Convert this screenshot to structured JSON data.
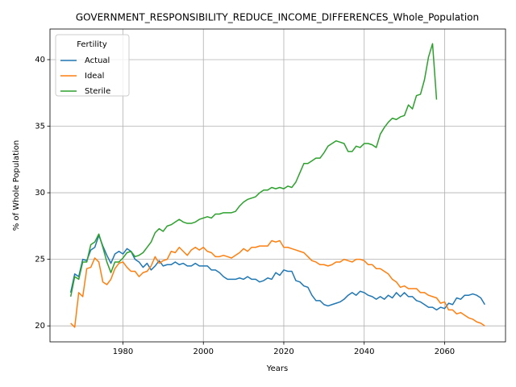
{
  "chart_data": {
    "type": "line",
    "title": "GOVERNMENT_RESPONSIBILITY_REDUCE_INCOME_DIFFERENCES_Whole_Population",
    "xlabel": "Years",
    "ylabel": "% of Whole Population",
    "legend_title": "Fertility",
    "legend": "upper left",
    "grid": true,
    "x": [
      1967,
      1968,
      1969,
      1970,
      1971,
      1972,
      1973,
      1974,
      1975,
      1976,
      1977,
      1978,
      1979,
      1980,
      1981,
      1982,
      1983,
      1984,
      1985,
      1986,
      1987,
      1988,
      1989,
      1990,
      1991,
      1992,
      1993,
      1994,
      1995,
      1996,
      1997,
      1998,
      1999,
      2000,
      2001,
      2002,
      2003,
      2004,
      2005,
      2006,
      2007,
      2008,
      2009,
      2010,
      2011,
      2012,
      2013,
      2014,
      2015,
      2016,
      2017,
      2018,
      2019,
      2020,
      2021,
      2022,
      2023,
      2024,
      2025,
      2026,
      2027,
      2028,
      2029,
      2030,
      2031,
      2032,
      2033,
      2034,
      2035,
      2036,
      2037,
      2038,
      2039,
      2040,
      2041,
      2042,
      2043,
      2044,
      2045,
      2046,
      2047,
      2048,
      2049,
      2050,
      2051,
      2052,
      2053,
      2054,
      2055,
      2056,
      2057,
      2058,
      2059,
      2060,
      2061,
      2062,
      2063,
      2064,
      2065,
      2066,
      2067,
      2068,
      2069,
      2070
    ],
    "series": [
      {
        "name": "Actual",
        "color": "#1f77b4",
        "values": [
          22.5,
          23.9,
          23.7,
          25.0,
          24.9,
          25.7,
          25.9,
          26.8,
          26.0,
          25.3,
          24.7,
          25.4,
          25.6,
          25.4,
          25.8,
          25.6,
          25.0,
          24.8,
          24.4,
          24.7,
          24.2,
          24.5,
          24.9,
          24.5,
          24.6,
          24.6,
          24.8,
          24.6,
          24.7,
          24.5,
          24.5,
          24.7,
          24.5,
          24.5,
          24.5,
          24.2,
          24.2,
          24.0,
          23.7,
          23.5,
          23.5,
          23.5,
          23.6,
          23.5,
          23.7,
          23.5,
          23.5,
          23.3,
          23.4,
          23.6,
          23.5,
          24.0,
          23.8,
          24.2,
          24.1,
          24.1,
          23.4,
          23.3,
          23.0,
          22.9,
          22.3,
          21.9,
          21.9,
          21.6,
          21.5,
          21.6,
          21.7,
          21.8,
          22.0,
          22.3,
          22.5,
          22.3,
          22.6,
          22.5,
          22.3,
          22.2,
          22.0,
          22.2,
          22.0,
          22.3,
          22.1,
          22.5,
          22.2,
          22.5,
          22.2,
          22.2,
          21.9,
          21.8,
          21.6,
          21.4,
          21.4,
          21.2,
          21.4,
          21.3,
          21.7,
          21.6,
          22.1,
          22.0,
          22.3,
          22.3,
          22.4,
          22.3,
          22.1,
          21.6
        ]
      },
      {
        "name": "Ideal",
        "color": "#ff7f0e",
        "values": [
          20.2,
          19.9,
          22.5,
          22.2,
          24.3,
          24.4,
          25.1,
          24.8,
          23.3,
          23.1,
          23.5,
          24.3,
          24.7,
          24.8,
          24.4,
          24.1,
          24.1,
          23.7,
          24.0,
          24.1,
          24.5,
          25.2,
          24.7,
          24.9,
          25.0,
          25.6,
          25.5,
          25.9,
          25.6,
          25.3,
          25.7,
          25.9,
          25.7,
          25.9,
          25.6,
          25.5,
          25.2,
          25.2,
          25.3,
          25.2,
          25.1,
          25.3,
          25.5,
          25.8,
          25.6,
          25.9,
          25.9,
          26.0,
          26.0,
          26.0,
          26.4,
          26.3,
          26.4,
          25.9,
          25.9,
          25.8,
          25.7,
          25.6,
          25.5,
          25.2,
          24.9,
          24.8,
          24.6,
          24.6,
          24.5,
          24.6,
          24.8,
          24.8,
          25.0,
          24.9,
          24.8,
          25.0,
          25.0,
          24.9,
          24.6,
          24.6,
          24.3,
          24.3,
          24.1,
          23.9,
          23.5,
          23.3,
          22.9,
          23.0,
          22.8,
          22.8,
          22.8,
          22.5,
          22.5,
          22.3,
          22.2,
          22.1,
          21.7,
          21.8,
          21.2,
          21.2,
          20.9,
          21.0,
          20.8,
          20.6,
          20.5,
          20.3,
          20.2,
          20.0
        ]
      },
      {
        "name": "Sterile",
        "color": "#2ca02c",
        "values": [
          22.2,
          23.7,
          23.5,
          24.8,
          24.8,
          26.1,
          26.3,
          26.9,
          25.9,
          24.8,
          24.0,
          24.8,
          24.8,
          25.1,
          25.5,
          25.6,
          25.2,
          25.3,
          25.5,
          25.9,
          26.3,
          27.0,
          27.3,
          27.1,
          27.5,
          27.6,
          27.8,
          28.0,
          27.8,
          27.7,
          27.7,
          27.8,
          28.0,
          28.1,
          28.2,
          28.1,
          28.4,
          28.4,
          28.5,
          28.5,
          28.5,
          28.6,
          29.0,
          29.3,
          29.5,
          29.6,
          29.7,
          30.0,
          30.2,
          30.2,
          30.4,
          30.3,
          30.4,
          30.3,
          30.5,
          30.4,
          30.8,
          31.5,
          32.2,
          32.2,
          32.4,
          32.6,
          32.6,
          33.0,
          33.5,
          33.7,
          33.9,
          33.8,
          33.7,
          33.1,
          33.1,
          33.5,
          33.4,
          33.7,
          33.7,
          33.6,
          33.4,
          34.4,
          34.9,
          35.3,
          35.6,
          35.5,
          35.7,
          35.8,
          36.6,
          36.3,
          37.3,
          37.4,
          38.5,
          40.2,
          41.2,
          37.0,
          null,
          null,
          null,
          null,
          null,
          null,
          null,
          null,
          null,
          null,
          null,
          null
        ]
      }
    ],
    "xlim": [
      1961.85,
      2075.15
    ],
    "xticks": [
      1980,
      2000,
      2020,
      2040,
      2060
    ],
    "ylim": [
      18.8,
      42.3
    ],
    "yticks": [
      20,
      25,
      30,
      35,
      40
    ]
  }
}
